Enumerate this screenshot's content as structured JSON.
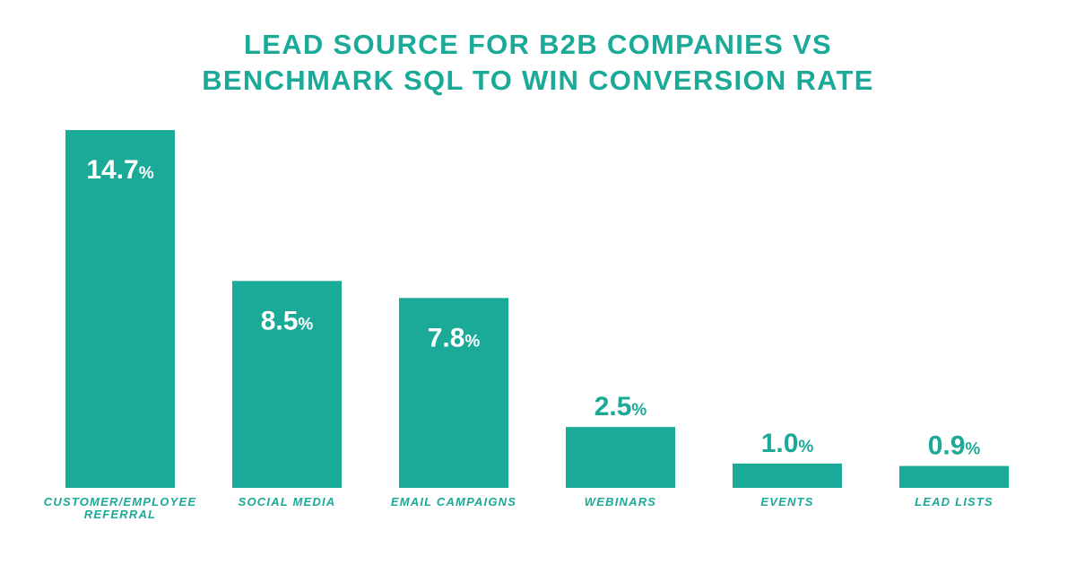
{
  "chart_data": {
    "type": "bar",
    "title_lines": [
      "LEAD SOURCE FOR B2B COMPANIES VS",
      "BENCHMARK SQL TO WIN CONVERSION RATE"
    ],
    "category_lines": [
      [
        "CUSTOMER/EMPLOYEE",
        "REFERRAL"
      ],
      [
        "SOCIAL MEDIA"
      ],
      [
        "EMAIL CAMPAIGNS"
      ],
      [
        "WEBINARS"
      ],
      [
        "EVENTS"
      ],
      [
        "LEAD LISTS"
      ]
    ],
    "values": [
      14.7,
      8.5,
      7.8,
      2.5,
      1.0,
      0.9
    ],
    "value_labels": [
      "14.7",
      "8.5",
      "7.8",
      "2.5",
      "1.0",
      "0.9"
    ],
    "value_suffix": "%",
    "xlabel": "",
    "ylabel": "",
    "ylim": [
      0,
      14.7
    ],
    "grid": false,
    "legend": "none"
  },
  "colors": {
    "accent": "#1ba998",
    "label_inside": "#ffffff",
    "background": "#ffffff"
  }
}
